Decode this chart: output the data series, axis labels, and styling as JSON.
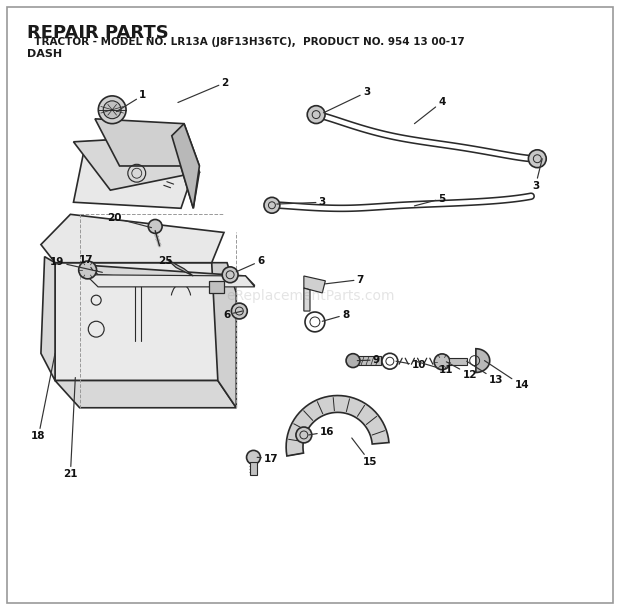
{
  "title_line1": "REPAIR PARTS",
  "title_line2": "  TRACTOR - MODEL NO. LR13A (J8F13H36TC),  PRODUCT NO. 954 13 00-17",
  "title_line3": "DASH",
  "bg_color": "#ffffff",
  "text_color": "#1a1a1a",
  "watermark": "eReplacementParts.com",
  "lc": "#2a2a2a",
  "figsize": [
    6.2,
    6.1
  ],
  "dpi": 100,
  "callouts": [
    {
      "num": "1",
      "nx": 0.235,
      "ny": 0.845,
      "ha": "left"
    },
    {
      "num": "2",
      "nx": 0.365,
      "ny": 0.865,
      "ha": "left"
    },
    {
      "num": "3",
      "nx": 0.595,
      "ny": 0.855,
      "ha": "left"
    },
    {
      "num": "3",
      "nx": 0.525,
      "ny": 0.675,
      "ha": "left"
    },
    {
      "num": "3",
      "nx": 0.87,
      "ny": 0.7,
      "ha": "left"
    },
    {
      "num": "4",
      "nx": 0.72,
      "ny": 0.84,
      "ha": "left"
    },
    {
      "num": "5",
      "nx": 0.72,
      "ny": 0.68,
      "ha": "left"
    },
    {
      "num": "6",
      "nx": 0.425,
      "ny": 0.58,
      "ha": "left"
    },
    {
      "num": "6",
      "nx": 0.37,
      "ny": 0.49,
      "ha": "left"
    },
    {
      "num": "7",
      "nx": 0.585,
      "ny": 0.55,
      "ha": "left"
    },
    {
      "num": "8",
      "nx": 0.56,
      "ny": 0.49,
      "ha": "left"
    },
    {
      "num": "9",
      "nx": 0.61,
      "ny": 0.415,
      "ha": "left"
    },
    {
      "num": "10",
      "nx": 0.68,
      "ny": 0.405,
      "ha": "left"
    },
    {
      "num": "11",
      "nx": 0.725,
      "ny": 0.398,
      "ha": "left"
    },
    {
      "num": "12",
      "nx": 0.762,
      "ny": 0.39,
      "ha": "left"
    },
    {
      "num": "13",
      "nx": 0.806,
      "ny": 0.382,
      "ha": "left"
    },
    {
      "num": "14",
      "nx": 0.848,
      "ny": 0.372,
      "ha": "left"
    },
    {
      "num": "15",
      "nx": 0.6,
      "ny": 0.245,
      "ha": "left"
    },
    {
      "num": "16",
      "nx": 0.53,
      "ny": 0.295,
      "ha": "left"
    },
    {
      "num": "17",
      "nx": 0.138,
      "ny": 0.582,
      "ha": "right"
    },
    {
      "num": "17",
      "nx": 0.44,
      "ny": 0.252,
      "ha": "left"
    },
    {
      "num": "18",
      "nx": 0.062,
      "ny": 0.29,
      "ha": "right"
    },
    {
      "num": "19",
      "nx": 0.092,
      "ny": 0.578,
      "ha": "right"
    },
    {
      "num": "20",
      "nx": 0.188,
      "ny": 0.65,
      "ha": "right"
    },
    {
      "num": "21",
      "nx": 0.115,
      "ny": 0.228,
      "ha": "left"
    },
    {
      "num": "25",
      "nx": 0.268,
      "ny": 0.58,
      "ha": "right"
    }
  ]
}
